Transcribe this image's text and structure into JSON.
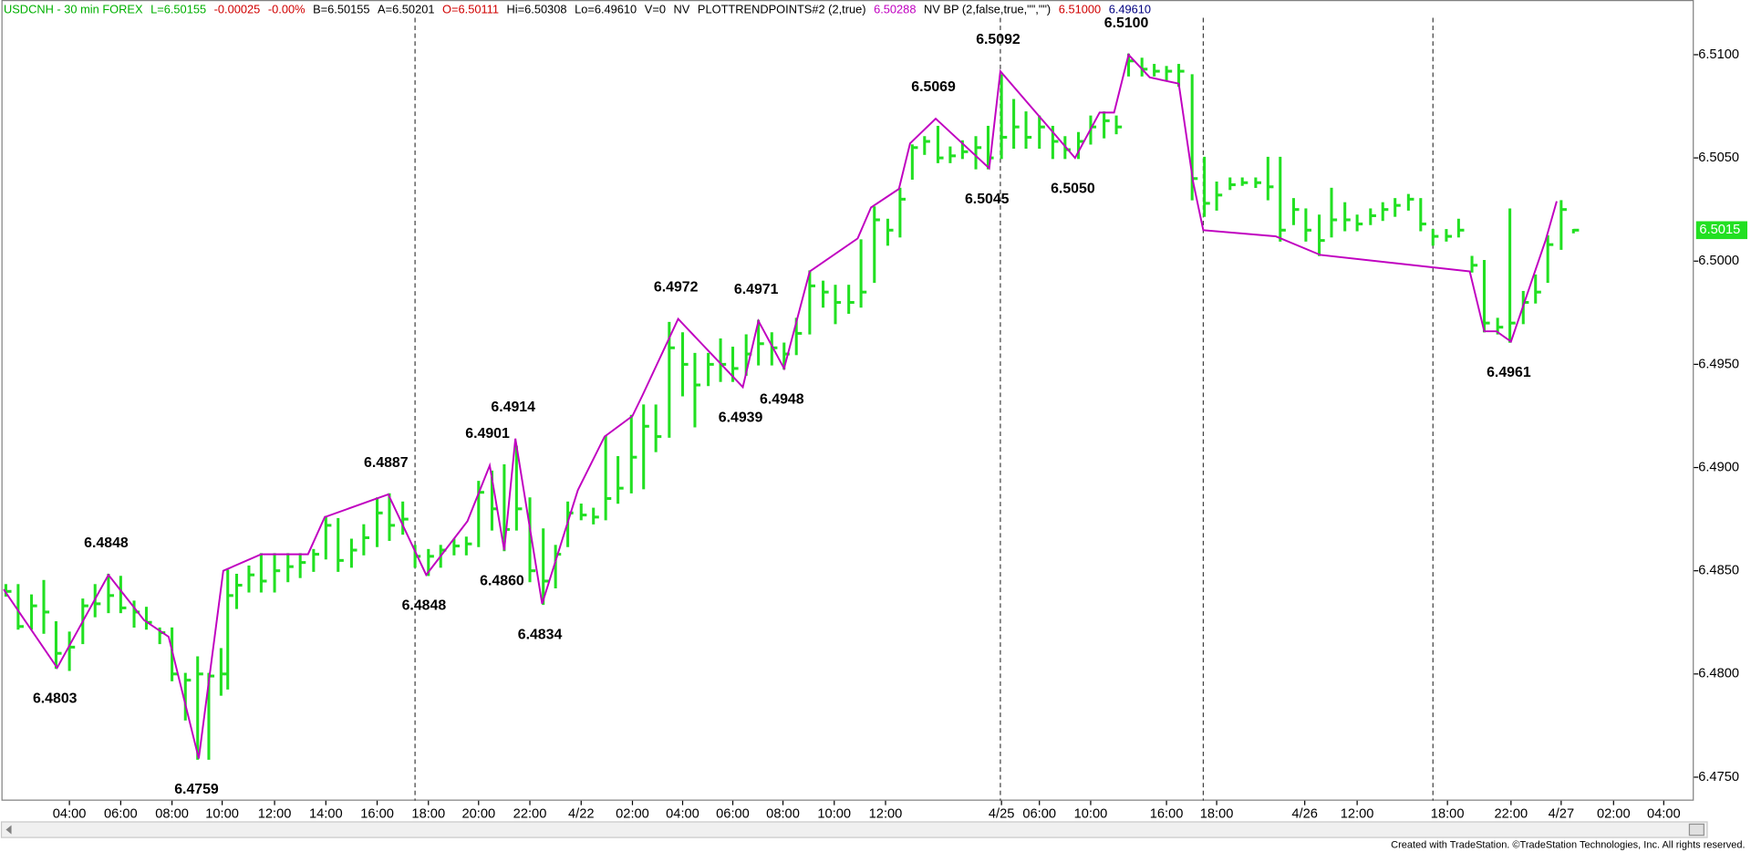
{
  "chart_data": {
    "type": "ohlc",
    "header": [
      {
        "text": "USDCNH - 30 min FOREX",
        "color": "#00b000"
      },
      {
        "text": "L=6.50155",
        "color": "#00b000"
      },
      {
        "text": "-0.00025",
        "color": "#d00000"
      },
      {
        "text": "-0.00%",
        "color": "#d00000"
      },
      {
        "text": "B=6.50155",
        "color": "#000000"
      },
      {
        "text": "A=6.50201",
        "color": "#000000"
      },
      {
        "text": "O=6.50111",
        "color": "#d00000"
      },
      {
        "text": "Hi=6.50308",
        "color": "#000000"
      },
      {
        "text": "Lo=6.49610",
        "color": "#000000"
      },
      {
        "text": "V=0",
        "color": "#000000"
      },
      {
        "text": "NV",
        "color": "#000000"
      },
      {
        "text": "PLOTTRENDPOINTS#2 (2,true)",
        "color": "#000000"
      },
      {
        "text": "6.50288",
        "color": "#c000c0"
      },
      {
        "text": "NV BP (2,false,true,\"\",\"\")",
        "color": "#000000"
      },
      {
        "text": "6.51000",
        "color": "#d00000"
      },
      {
        "text": "6.49610",
        "color": "#000080"
      }
    ],
    "bar_color": "#22e022",
    "bars": {
      "x": [
        4,
        15,
        27,
        38,
        49,
        61,
        73,
        84,
        96,
        107,
        119,
        130,
        142,
        153,
        165,
        176,
        186,
        197,
        203,
        211,
        222,
        233,
        245,
        257,
        268,
        280,
        291,
        302,
        314,
        325,
        337,
        348,
        360,
        371,
        383,
        394,
        406,
        417,
        428,
        440,
        451,
        462,
        474,
        486,
        497,
        508,
        520,
        531,
        542,
        553,
        565,
        576,
        587,
        599,
        611,
        622,
        634,
        645,
        656,
        668,
        679,
        691,
        702,
        713,
        725,
        737,
        748,
        760,
        771,
        783,
        795,
        806,
        817,
        828,
        840,
        851,
        862,
        874,
        885,
        897,
        908,
        919,
        931,
        943,
        954,
        966,
        977,
        989,
        1000,
        1011,
        1023,
        1034,
        1045,
        1056,
        1068,
        1079,
        1090,
        1102,
        1113,
        1125,
        1136,
        1147,
        1159,
        1170,
        1182,
        1193,
        1205,
        1216,
        1228,
        1239,
        1250,
        1262,
        1273,
        1284,
        1296,
        1307,
        1319,
        1330,
        1342,
        1353,
        1365,
        1376,
        1387,
        1399,
        1410
      ],
      "high": [
        6.4843,
        6.4843,
        6.4838,
        6.4845,
        6.4825,
        6.482,
        6.4836,
        6.4843,
        6.4848,
        6.4847,
        6.4835,
        6.4832,
        6.4822,
        6.4822,
        6.48,
        6.4808,
        6.48,
        6.4812,
        6.485,
        6.4848,
        6.4852,
        6.4858,
        6.4858,
        6.4858,
        6.4858,
        6.486,
        6.4876,
        6.4875,
        6.4865,
        6.4872,
        6.4885,
        6.4887,
        6.4883,
        6.4862,
        6.486,
        6.4862,
        6.4865,
        6.4866,
        6.4893,
        6.4898,
        6.4901,
        6.491,
        6.4885,
        6.487,
        6.4862,
        6.4883,
        6.4882,
        6.488,
        6.4915,
        6.4905,
        6.4925,
        6.493,
        6.493,
        6.497,
        6.4965,
        6.4955,
        6.4955,
        6.4962,
        6.4958,
        6.4964,
        6.4971,
        6.4965,
        6.496,
        6.4972,
        6.4995,
        6.499,
        6.4988,
        6.4988,
        6.501,
        6.5026,
        6.502,
        6.5035,
        6.5056,
        6.506,
        6.5065,
        6.5055,
        6.5058,
        6.506,
        6.5065,
        6.509,
        6.5078,
        6.5072,
        6.507,
        6.5065,
        6.506,
        6.5062,
        6.507,
        6.5072,
        6.507,
        6.51,
        6.5098,
        6.5095,
        6.5094,
        6.5095,
        6.509,
        6.505,
        6.5038,
        6.504,
        6.504,
        6.504,
        6.505,
        6.505,
        6.503,
        6.5025,
        6.5022,
        6.5035,
        6.5028,
        6.5022,
        6.5025,
        6.5028,
        6.503,
        6.5032,
        6.503,
        6.5015,
        6.5015,
        6.502,
        6.5002,
        6.5,
        6.4972,
        6.5025,
        6.4985,
        6.4993,
        6.5012,
        6.5029,
        6.5015
      ],
      "low": [
        6.4838,
        6.4822,
        6.4822,
        6.482,
        6.4803,
        6.4802,
        6.4815,
        6.4828,
        6.483,
        6.483,
        6.4823,
        6.4822,
        6.4815,
        6.4797,
        6.4778,
        6.4759,
        6.4759,
        6.479,
        6.4793,
        6.4832,
        6.484,
        6.484,
        6.484,
        6.4845,
        6.4847,
        6.485,
        6.4856,
        6.485,
        6.4852,
        6.4858,
        6.4862,
        6.4865,
        6.4868,
        6.4852,
        6.4848,
        6.4852,
        6.4858,
        6.4858,
        6.4862,
        6.487,
        6.486,
        6.487,
        6.4845,
        6.4834,
        6.4842,
        6.4862,
        6.4875,
        6.4873,
        6.4875,
        6.4883,
        6.4888,
        6.489,
        6.4908,
        6.4915,
        6.4935,
        6.492,
        6.494,
        6.4942,
        6.4942,
        6.4945,
        6.495,
        6.495,
        6.4948,
        6.4955,
        6.4965,
        6.4978,
        6.497,
        6.4975,
        6.4978,
        6.499,
        6.5008,
        6.5012,
        6.504,
        6.5052,
        6.5048,
        6.5048,
        6.505,
        6.5045,
        6.5045,
        6.505,
        6.5055,
        6.5055,
        6.5055,
        6.505,
        6.505,
        6.505,
        6.5057,
        6.506,
        6.5062,
        6.509,
        6.509,
        6.509,
        6.5088,
        6.5085,
        6.503,
        6.5022,
        6.5025,
        6.5035,
        6.5037,
        6.5036,
        6.503,
        6.501,
        6.5018,
        6.501,
        6.5003,
        6.5012,
        6.5015,
        6.5015,
        6.5018,
        6.502,
        6.5022,
        6.5025,
        6.5015,
        6.5008,
        6.501,
        6.5012,
        6.4995,
        6.4966,
        6.4965,
        6.4961,
        6.497,
        6.498,
        6.499,
        6.5006,
        6.5014
      ],
      "close": [
        6.484,
        6.4823,
        6.4833,
        6.483,
        6.481,
        6.4813,
        6.4833,
        6.4834,
        6.4838,
        6.4832,
        6.483,
        6.4825,
        6.482,
        6.48,
        6.4797,
        6.48,
        6.4799,
        6.48,
        6.4838,
        6.4843,
        6.4848,
        6.4845,
        6.485,
        6.4852,
        6.4854,
        6.4858,
        6.4872,
        6.4855,
        6.486,
        6.4866,
        6.4878,
        6.4872,
        6.4875,
        6.4857,
        6.4857,
        6.486,
        6.4862,
        6.4863,
        6.4888,
        6.488,
        6.487,
        6.488,
        6.485,
        6.4845,
        6.4858,
        6.4878,
        6.4877,
        6.4876,
        6.4885,
        6.489,
        6.4905,
        6.492,
        6.4915,
        6.4958,
        6.495,
        6.494,
        6.495,
        6.495,
        6.4948,
        6.4955,
        6.496,
        6.4958,
        6.4955,
        6.4965,
        6.4988,
        6.4985,
        6.498,
        6.498,
        6.4985,
        6.502,
        6.5015,
        6.503,
        6.5055,
        6.5058,
        6.505,
        6.5051,
        6.5053,
        6.5055,
        6.505,
        6.506,
        6.5065,
        6.506,
        6.5065,
        6.5058,
        6.5054,
        6.5058,
        6.5065,
        6.5068,
        6.5065,
        6.5097,
        6.5093,
        6.5092,
        6.5092,
        6.5092,
        6.504,
        6.5028,
        6.5032,
        6.5037,
        6.5038,
        6.5038,
        6.5036,
        6.5015,
        6.5025,
        6.5015,
        6.501,
        6.502,
        6.502,
        6.5018,
        6.5022,
        6.5025,
        6.5027,
        6.503,
        6.5018,
        6.5012,
        6.5012,
        6.5015,
        6.4998,
        6.497,
        6.4968,
        6.497,
        6.498,
        6.4985,
        6.5008,
        6.5025,
        6.5015
      ]
    },
    "zigzag": {
      "color": "#c000c0",
      "x": [
        2,
        50,
        96,
        128,
        150,
        177,
        199,
        233,
        275,
        290,
        347,
        381,
        418,
        438,
        451,
        461,
        485,
        517,
        541,
        566,
        575,
        607,
        665,
        679,
        702,
        725,
        768,
        780,
        805,
        815,
        838,
        886,
        896,
        963,
        985,
        998,
        1011,
        1030,
        1056,
        1069,
        1078,
        1143,
        1183,
        1317,
        1330,
        1341,
        1354,
        1385,
        1395
      ],
      "values": [
        6.4841,
        6.4803,
        6.4848,
        6.4826,
        6.4818,
        6.4759,
        6.485,
        6.4858,
        6.4858,
        6.4876,
        6.4887,
        6.4848,
        6.4874,
        6.4901,
        6.486,
        6.4914,
        6.4834,
        6.4889,
        6.4915,
        6.4925,
        6.4935,
        6.4972,
        6.4939,
        6.4971,
        6.4948,
        6.4995,
        6.5011,
        6.5026,
        6.5035,
        6.5057,
        6.5069,
        6.5045,
        6.5092,
        6.505,
        6.5072,
        6.5072,
        6.51,
        6.5089,
        6.5086,
        6.5038,
        6.5015,
        6.5012,
        6.5003,
        6.4995,
        6.4966,
        6.4966,
        6.4961,
        6.501,
        6.5029
      ],
      "value_labels": [
        null,
        "6.4803",
        "6.4848",
        null,
        null,
        "6.4759",
        null,
        null,
        null,
        null,
        "6.4887",
        "6.4848",
        null,
        "6.4901",
        "6.4860",
        "6.4914",
        "6.4834",
        null,
        null,
        null,
        null,
        "6.4972",
        "6.4939",
        "6.4971",
        "6.4948",
        null,
        null,
        null,
        null,
        null,
        "6.5069",
        "6.5045",
        "6.5092",
        "6.5050",
        null,
        null,
        "6.5100",
        null,
        null,
        null,
        null,
        null,
        null,
        null,
        null,
        null,
        "6.4961",
        null,
        null
      ]
    },
    "last_price": {
      "value": 6.5015,
      "label": "6.5015",
      "color": "#22e022"
    },
    "xlim": [
      0,
      1518
    ],
    "ylim": [
      6.47386,
      6.51265
    ],
    "yticks": [
      {
        "value": 6.475,
        "label": "6.4750"
      },
      {
        "value": 6.48,
        "label": "6.4800"
      },
      {
        "value": 6.485,
        "label": "6.4850"
      },
      {
        "value": 6.49,
        "label": "6.4900"
      },
      {
        "value": 6.495,
        "label": "6.4950"
      },
      {
        "value": 6.5,
        "label": "6.5000"
      },
      {
        "value": 6.505,
        "label": "6.5050"
      },
      {
        "value": 6.51,
        "label": "6.5100"
      }
    ],
    "xticks": [
      {
        "value": 61,
        "label": "04:00"
      },
      {
        "value": 107,
        "label": "06:00"
      },
      {
        "value": 153,
        "label": "08:00"
      },
      {
        "value": 198,
        "label": "10:00"
      },
      {
        "value": 245,
        "label": "12:00"
      },
      {
        "value": 291,
        "label": "14:00"
      },
      {
        "value": 337,
        "label": "16:00"
      },
      {
        "value": 383,
        "label": "18:00"
      },
      {
        "value": 428,
        "label": "20:00"
      },
      {
        "value": 474,
        "label": "22:00"
      },
      {
        "value": 520,
        "label": "4/22"
      },
      {
        "value": 566,
        "label": "02:00"
      },
      {
        "value": 611,
        "label": "04:00"
      },
      {
        "value": 656,
        "label": "06:00"
      },
      {
        "value": 701,
        "label": "08:00"
      },
      {
        "value": 747,
        "label": "10:00"
      },
      {
        "value": 793,
        "label": "12:00"
      },
      {
        "value": 897,
        "label": "4/25"
      },
      {
        "value": 931,
        "label": "06:00"
      },
      {
        "value": 977,
        "label": "10:00"
      },
      {
        "value": 1045,
        "label": "16:00"
      },
      {
        "value": 1090,
        "label": "18:00"
      },
      {
        "value": 1169,
        "label": "4/26"
      },
      {
        "value": 1216,
        "label": "12:00"
      },
      {
        "value": 1297,
        "label": "18:00"
      },
      {
        "value": 1354,
        "label": "22:00"
      },
      {
        "value": 1399,
        "label": "4/27"
      },
      {
        "value": 1446,
        "label": "02:00"
      },
      {
        "value": 1491,
        "label": "04:00"
      }
    ],
    "footer": "Created with TradeStation. ©TradeStation Technologies, Inc. All rights reserved."
  }
}
